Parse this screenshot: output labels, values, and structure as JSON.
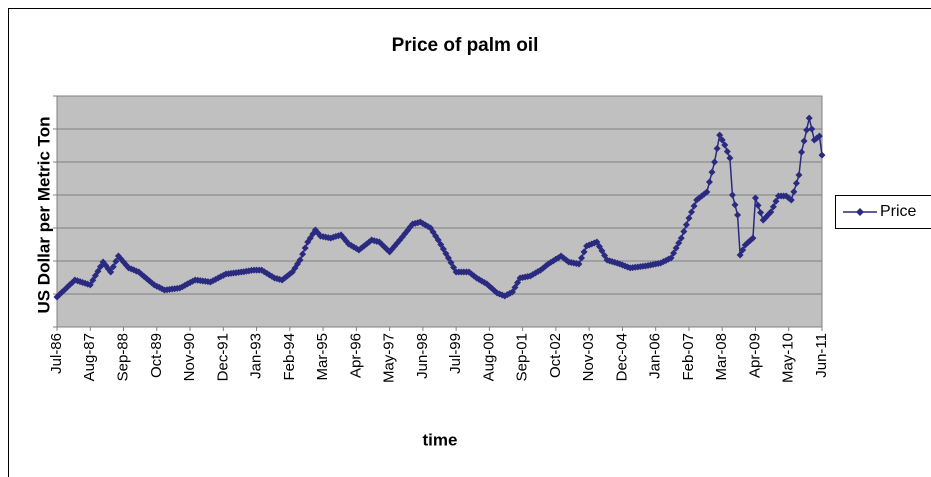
{
  "chart_data": {
    "type": "line",
    "title": "Price of palm oil",
    "x_label": "time",
    "y_label": "US Dollar per Metric Ton",
    "categories": [
      "Jul-86",
      null,
      null,
      null,
      null,
      null,
      null,
      null,
      null,
      null,
      null,
      null,
      null,
      "Aug-87",
      null,
      null,
      null,
      null,
      null,
      null,
      null,
      null,
      null,
      null,
      null,
      null,
      "Sep-88",
      null,
      null,
      null,
      null,
      null,
      null,
      null,
      null,
      null,
      null,
      null,
      null,
      "Oct-89",
      null,
      null,
      null,
      null,
      null,
      null,
      null,
      null,
      null,
      null,
      null,
      null,
      "Nov-90",
      null,
      null,
      null,
      null,
      null,
      null,
      null,
      null,
      null,
      null,
      null,
      null,
      "Dec-91",
      null,
      null,
      null,
      null,
      null,
      null,
      null,
      null,
      null,
      null,
      null,
      null,
      "Jan-93",
      null,
      null,
      null,
      null,
      null,
      null,
      null,
      null,
      null,
      null,
      null,
      null,
      "Feb-94",
      null,
      null,
      null,
      null,
      null,
      null,
      null,
      null,
      null,
      null,
      null,
      null,
      "Mar-95",
      null,
      null,
      null,
      null,
      null,
      null,
      null,
      null,
      null,
      null,
      null,
      null,
      "Apr-96",
      null,
      null,
      null,
      null,
      null,
      null,
      null,
      null,
      null,
      null,
      null,
      null,
      "May-97",
      null,
      null,
      null,
      null,
      null,
      null,
      null,
      null,
      null,
      null,
      null,
      null,
      "Jun-98",
      null,
      null,
      null,
      null,
      null,
      null,
      null,
      null,
      null,
      null,
      null,
      null,
      "Jul-99",
      null,
      null,
      null,
      null,
      null,
      null,
      null,
      null,
      null,
      null,
      null,
      null,
      "Aug-00",
      null,
      null,
      null,
      null,
      null,
      null,
      null,
      null,
      null,
      null,
      null,
      null,
      "Sep-01",
      null,
      null,
      null,
      null,
      null,
      null,
      null,
      null,
      null,
      null,
      null,
      null,
      "Oct-02",
      null,
      null,
      null,
      null,
      null,
      null,
      null,
      null,
      null,
      null,
      null,
      null,
      "Nov-03",
      null,
      null,
      null,
      null,
      null,
      null,
      null,
      null,
      null,
      null,
      null,
      null,
      "Dec-04",
      null,
      null,
      null,
      null,
      null,
      null,
      null,
      null,
      null,
      null,
      null,
      null,
      "Jan-06",
      null,
      null,
      null,
      null,
      null,
      null,
      null,
      null,
      null,
      null,
      null,
      null,
      "Feb-07",
      null,
      null,
      null,
      null,
      null,
      null,
      null,
      null,
      null,
      null,
      null,
      null,
      "Mar-08",
      null,
      null,
      null,
      null,
      null,
      null,
      null,
      null,
      null,
      null,
      null,
      null,
      "Apr-09",
      null,
      null,
      null,
      null,
      null,
      null,
      null,
      null,
      null,
      null,
      null,
      null,
      "May-10",
      null,
      null,
      null,
      null,
      null,
      null,
      null,
      null,
      null,
      null,
      null,
      null,
      "Jun-11"
    ],
    "series": [
      {
        "name": "Price",
        "color": "#2a2a80",
        "values": [
          182,
          197,
          212,
          226,
          241,
          256,
          270,
          285,
          280,
          275,
          270,
          265,
          260,
          255,
          283,
          311,
          338,
          366,
          394,
          374,
          353,
          333,
          365,
          398,
          430,
          412,
          394,
          376,
          358,
          352,
          346,
          339,
          333,
          320,
          307,
          294,
          281,
          268,
          255,
          247,
          240,
          232,
          224,
          226,
          228,
          230,
          232,
          234,
          236,
          244,
          252,
          261,
          269,
          277,
          285,
          283,
          281,
          279,
          277,
          275,
          273,
          281,
          289,
          297,
          305,
          313,
          321,
          323,
          325,
          327,
          329,
          331,
          333,
          335,
          338,
          340,
          343,
          345,
          345,
          345,
          345,
          335,
          326,
          316,
          307,
          297,
          293,
          289,
          285,
          297,
          309,
          321,
          333,
          357,
          382,
          406,
          442,
          479,
          515,
          539,
          564,
          588,
          570,
          551,
          548,
          545,
          542,
          539,
          544,
          549,
          553,
          558,
          540,
          521,
          503,
          494,
          485,
          476,
          467,
          479,
          491,
          503,
          515,
          527,
          523,
          519,
          515,
          500,
          485,
          470,
          455,
          473,
          491,
          509,
          527,
          546,
          566,
          585,
          605,
          624,
          628,
          632,
          636,
          627,
          618,
          609,
          600,
          576,
          551,
          527,
          500,
          473,
          445,
          418,
          390,
          361,
          333,
          333,
          333,
          333,
          333,
          333,
          321,
          309,
          297,
          288,
          279,
          270,
          261,
          247,
          234,
          220,
          206,
          200,
          194,
          188,
          196,
          204,
          212,
          240,
          269,
          297,
          300,
          303,
          306,
          309,
          318,
          327,
          336,
          345,
          357,
          370,
          382,
          392,
          401,
          411,
          420,
          430,
          418,
          406,
          394,
          391,
          388,
          385,
          382,
          418,
          455,
          491,
          497,
          503,
          509,
          515,
          488,
          461,
          433,
          406,
          401,
          396,
          392,
          387,
          382,
          376,
          370,
          364,
          358,
          360,
          362,
          364,
          366,
          368,
          370,
          373,
          376,
          379,
          382,
          385,
          388,
          396,
          403,
          411,
          418,
          448,
          479,
          509,
          539,
          579,
          620,
          660,
          697,
          733,
          770,
          782,
          794,
          806,
          818,
          879,
          939,
          1000,
          1082,
          1163,
          1133,
          1103,
          1064,
          1024,
          800,
          740,
          679,
          436,
          467,
          497,
          511,
          525,
          539,
          782,
          737,
          693,
          648,
          664,
          681,
          697,
          729,
          762,
          794,
          794,
          794,
          794,
          782,
          770,
          820,
          871,
          921,
          1060,
          1127,
          1194,
          1266,
          1200,
          1133,
          1145,
          1157,
          1042
        ]
      }
    ],
    "ylim": [
      0,
      1400
    ],
    "yticks": [
      0,
      200,
      400,
      600,
      800,
      1000,
      1200,
      1400
    ],
    "grid": true,
    "legend": "right"
  }
}
